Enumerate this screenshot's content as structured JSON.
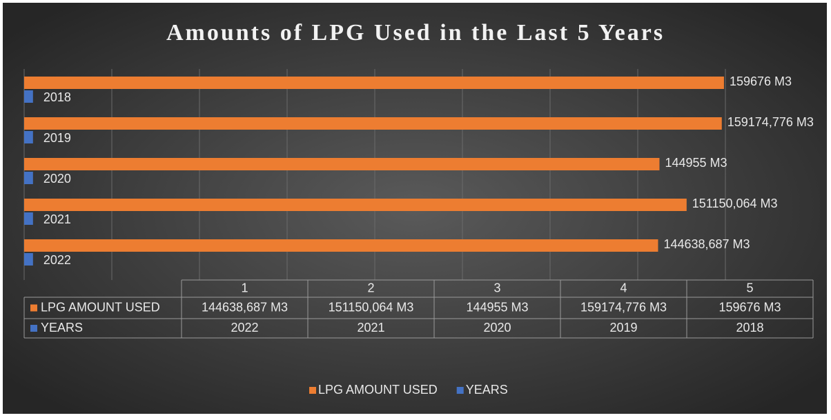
{
  "chart_data": {
    "type": "bar",
    "orientation": "horizontal",
    "title": "Amounts of LPG Used in the Last 5 Years",
    "categories": [
      "1",
      "2",
      "3",
      "4",
      "5"
    ],
    "series": [
      {
        "name": "LPG AMOUNT USED",
        "color": "#ed7d31",
        "values": [
          144638.687,
          151150.064,
          144955,
          159174.776,
          159676
        ],
        "value_labels": [
          "144638,687 M3",
          "151150,064 M3",
          "144955 M3",
          "159174,776 M3",
          "159676 M3"
        ]
      },
      {
        "name": "YEARS",
        "color": "#4472c4",
        "values": [
          2022,
          2021,
          2020,
          2019,
          2018
        ]
      }
    ],
    "xlim": [
      0,
      160000
    ],
    "xticks": [
      0,
      20000,
      40000,
      60000,
      80000,
      100000,
      120000,
      140000,
      160000
    ],
    "grid": true,
    "data_table": true,
    "legend": "bottom"
  }
}
